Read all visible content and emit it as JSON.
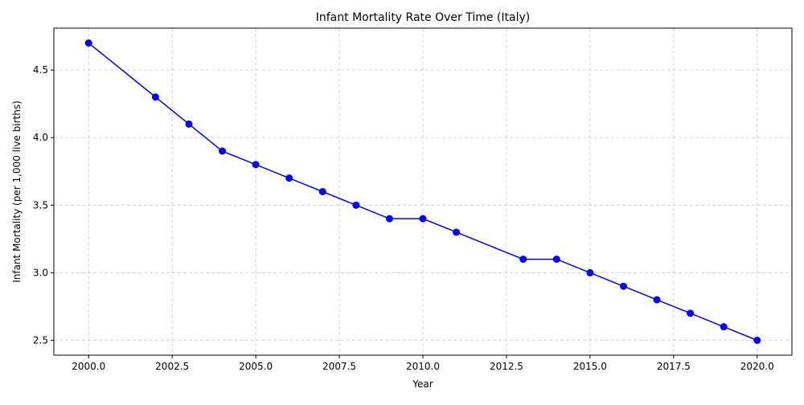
{
  "chart_data": {
    "type": "line",
    "title": "Infant Mortality Rate Over Time (Italy)",
    "xlabel": "Year",
    "ylabel": "Infant Mortality (per 1,000 live births)",
    "xlim": [
      1998.96,
      2021.04
    ],
    "ylim": [
      2.39,
      4.81
    ],
    "xticks": [
      2000,
      2002.5,
      2005,
      2007.5,
      2010,
      2012.5,
      2015,
      2017.5,
      2020
    ],
    "xtick_labels": [
      "2000.0",
      "2002.5",
      "2005.0",
      "2007.5",
      "2010.0",
      "2012.5",
      "2015.0",
      "2017.5",
      "2020.0"
    ],
    "yticks": [
      2.5,
      3.0,
      3.5,
      4.0,
      4.5
    ],
    "ytick_labels": [
      "2.5",
      "3.0",
      "3.5",
      "4.0",
      "4.5"
    ],
    "grid": true,
    "grid_style": "dashed",
    "series": [
      {
        "color": "#0000ff",
        "marker": "circle",
        "x": [
          2000,
          2002,
          2003,
          2004,
          2005,
          2006,
          2007,
          2008,
          2009,
          2010,
          2011,
          2013,
          2014,
          2015,
          2016,
          2017,
          2018,
          2019,
          2020
        ],
        "y": [
          4.7,
          4.3,
          4.1,
          3.9,
          3.8,
          3.7,
          3.6,
          3.5,
          3.4,
          3.4,
          3.3,
          3.1,
          3.1,
          3.0,
          2.9,
          2.8,
          2.7,
          2.6,
          2.5
        ]
      }
    ]
  }
}
